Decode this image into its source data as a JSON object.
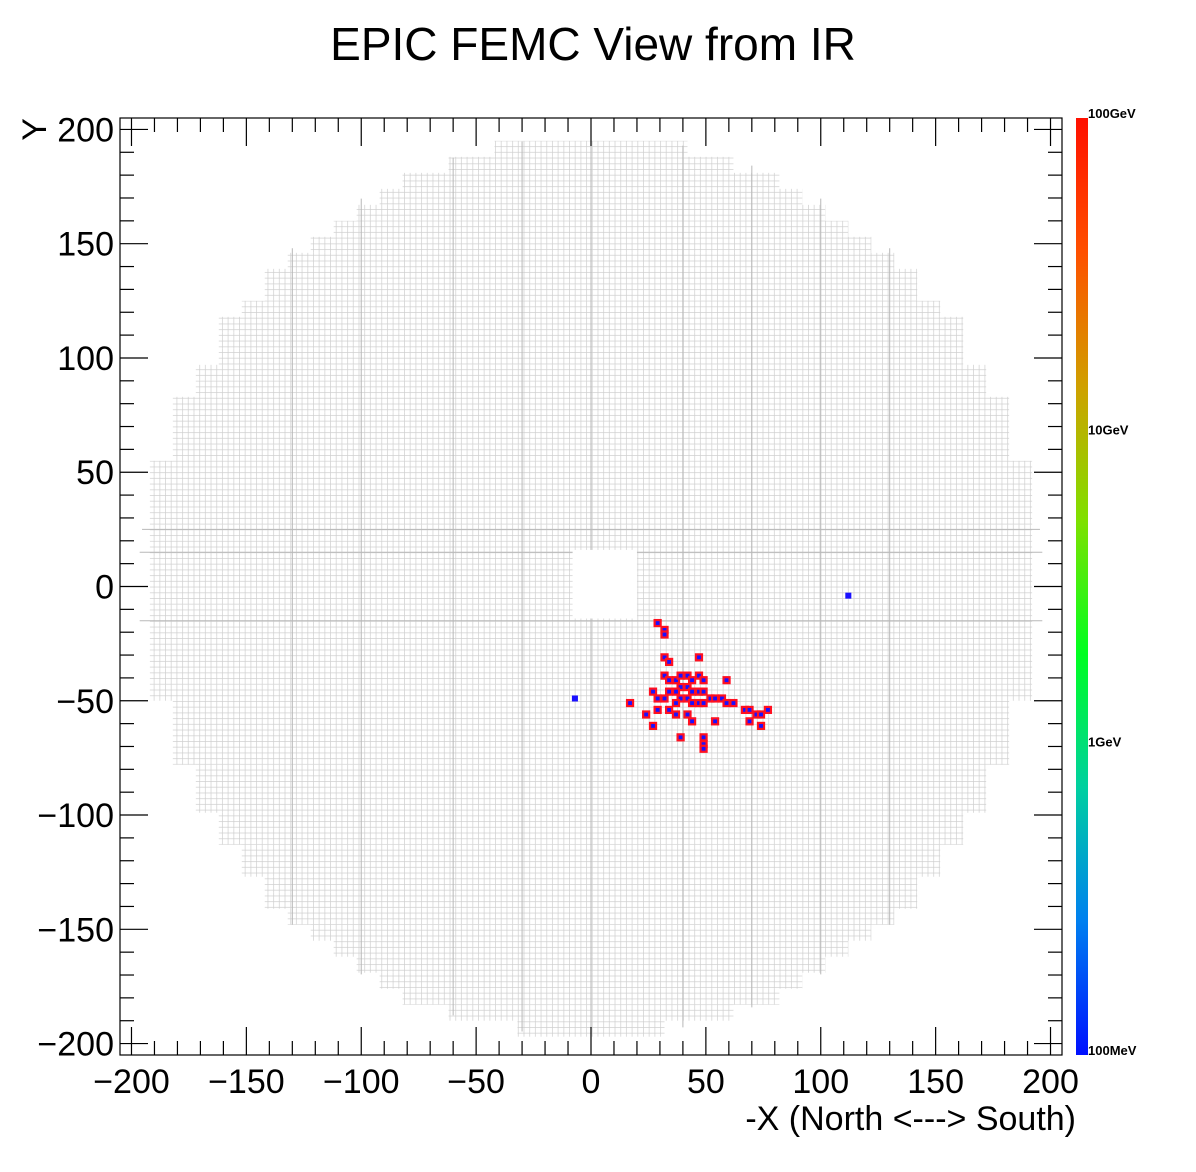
{
  "chart_data": {
    "type": "heatmap",
    "title": "EPIC FEMC View from IR",
    "xlabel": "-X (North <---> South)",
    "ylabel": "Y",
    "xlim": [
      -205,
      205
    ],
    "ylim": [
      -205,
      205
    ],
    "x_ticks": [
      -200,
      -150,
      -100,
      -50,
      0,
      50,
      100,
      150,
      200
    ],
    "y_ticks": [
      -200,
      -150,
      -100,
      -50,
      0,
      50,
      100,
      150,
      200
    ],
    "x_tick_labels": [
      "−200",
      "−150",
      "−100",
      "−50",
      "0",
      "50",
      "100",
      "150",
      "200"
    ],
    "y_tick_labels": [
      "−200",
      "−150",
      "−100",
      "−50",
      "0",
      "50",
      "100",
      "150",
      "200"
    ],
    "z_scale": "log",
    "z_range_gev": [
      0.1,
      100
    ],
    "z_tick_labels": [
      "100MeV",
      "1GeV",
      "10GeV",
      "100GeV"
    ],
    "z_tick_values_gev": [
      0.1,
      1,
      10,
      100
    ],
    "colorbar_colors": [
      "#0010ff",
      "#0080f0",
      "#00d0a0",
      "#00ff20",
      "#80e000",
      "#d0a000",
      "#ff5000",
      "#ff1000"
    ],
    "cell_size": 2.5,
    "detector_outer_radius": 197,
    "beam_hole": {
      "x": [
        -8,
        20
      ],
      "y": [
        -14,
        16
      ]
    },
    "grid_color": "#cccccc",
    "hit_fill_color": "#1a10ff",
    "hit_edge_color": "#ff1020",
    "hits": [
      {
        "x": 29,
        "y": -16,
        "e": 0.15
      },
      {
        "x": 32,
        "y": -19,
        "e": 0.15
      },
      {
        "x": 32,
        "y": -21,
        "e": 0.15
      },
      {
        "x": 32,
        "y": -31,
        "e": 0.15
      },
      {
        "x": 34,
        "y": -33,
        "e": 0.15
      },
      {
        "x": 47,
        "y": -31,
        "e": 0.15
      },
      {
        "x": 32,
        "y": -39,
        "e": 0.15
      },
      {
        "x": 34,
        "y": -41,
        "e": 0.15
      },
      {
        "x": 37,
        "y": -41,
        "e": 0.15
      },
      {
        "x": 39,
        "y": -39,
        "e": 0.15
      },
      {
        "x": 42,
        "y": -39,
        "e": 0.15
      },
      {
        "x": 47,
        "y": -39,
        "e": 0.15
      },
      {
        "x": 39,
        "y": -44,
        "e": 0.15
      },
      {
        "x": 42,
        "y": -44,
        "e": 0.15
      },
      {
        "x": 44,
        "y": -41,
        "e": 0.15
      },
      {
        "x": 49,
        "y": -41,
        "e": 0.15
      },
      {
        "x": 59,
        "y": -41,
        "e": 0.15
      },
      {
        "x": 27,
        "y": -46,
        "e": 0.15
      },
      {
        "x": 34,
        "y": -46,
        "e": 0.15
      },
      {
        "x": 37,
        "y": -46,
        "e": 0.15
      },
      {
        "x": 44,
        "y": -46,
        "e": 0.15
      },
      {
        "x": 47,
        "y": -46,
        "e": 0.15
      },
      {
        "x": 49,
        "y": -46,
        "e": 0.15
      },
      {
        "x": 29,
        "y": -49,
        "e": 0.15
      },
      {
        "x": 32,
        "y": -49,
        "e": 0.15
      },
      {
        "x": 39,
        "y": -49,
        "e": 0.15
      },
      {
        "x": 42,
        "y": -49,
        "e": 0.15
      },
      {
        "x": 52,
        "y": -49,
        "e": 0.15
      },
      {
        "x": 54,
        "y": -49,
        "e": 0.15
      },
      {
        "x": 57,
        "y": -49,
        "e": 0.15
      },
      {
        "x": 17,
        "y": -51,
        "e": 0.15
      },
      {
        "x": 37,
        "y": -51,
        "e": 0.15
      },
      {
        "x": 44,
        "y": -51,
        "e": 0.15
      },
      {
        "x": 47,
        "y": -51,
        "e": 0.15
      },
      {
        "x": 49,
        "y": -51,
        "e": 0.15
      },
      {
        "x": 59,
        "y": -51,
        "e": 0.15
      },
      {
        "x": 62,
        "y": -51,
        "e": 0.15
      },
      {
        "x": 29,
        "y": -54,
        "e": 0.15
      },
      {
        "x": 34,
        "y": -54,
        "e": 0.15
      },
      {
        "x": 67,
        "y": -54,
        "e": 0.15
      },
      {
        "x": 69,
        "y": -54,
        "e": 0.15
      },
      {
        "x": 77,
        "y": -54,
        "e": 0.15
      },
      {
        "x": 24,
        "y": -56,
        "e": 0.15
      },
      {
        "x": 37,
        "y": -56,
        "e": 0.15
      },
      {
        "x": 42,
        "y": -56,
        "e": 0.15
      },
      {
        "x": 72,
        "y": -56,
        "e": 0.15
      },
      {
        "x": 74,
        "y": -56,
        "e": 0.15
      },
      {
        "x": 44,
        "y": -59,
        "e": 0.15
      },
      {
        "x": 54,
        "y": -59,
        "e": 0.15
      },
      {
        "x": 69,
        "y": -59,
        "e": 0.15
      },
      {
        "x": 27,
        "y": -61,
        "e": 0.15
      },
      {
        "x": 74,
        "y": -61,
        "e": 0.15
      },
      {
        "x": 39,
        "y": -66,
        "e": 0.15
      },
      {
        "x": 49,
        "y": -66,
        "e": 0.15
      },
      {
        "x": 49,
        "y": -69,
        "e": 0.15
      },
      {
        "x": 49,
        "y": -71,
        "e": 0.15
      },
      {
        "x": 112,
        "y": -4,
        "e": 0.12,
        "isolated": true
      },
      {
        "x": -7,
        "y": -49,
        "e": 0.12,
        "isolated": true
      }
    ]
  }
}
